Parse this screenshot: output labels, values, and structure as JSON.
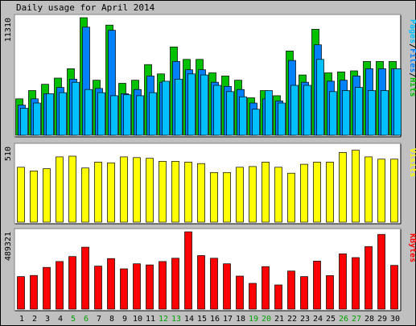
{
  "chart_data": {
    "type": "bar",
    "title": "Daily usage for April 2014",
    "categories": [
      "1",
      "2",
      "3",
      "4",
      "5",
      "6",
      "7",
      "8",
      "9",
      "10",
      "11",
      "12",
      "13",
      "14",
      "15",
      "16",
      "17",
      "18",
      "19",
      "20",
      "21",
      "22",
      "23",
      "24",
      "25",
      "26",
      "27",
      "28",
      "29",
      "30"
    ],
    "weekend_days": [
      "5",
      "6",
      "12",
      "13",
      "19",
      "20",
      "26",
      "27"
    ],
    "colors": {
      "hits": "#00c000",
      "files": "#0080ff",
      "pages": "#00c0ff",
      "visits": "#ffff00",
      "kbytes": "#ff0000",
      "weekday_label": "#000000",
      "weekend_label": "#00a000",
      "panel_bg": "#ffffff",
      "page_bg": "#c0c0c0"
    },
    "panels": [
      {
        "id": "hits-panel",
        "ymax_label": "11310",
        "ymax": 11310,
        "series_label": {
          "parts": [
            {
              "text": "Pages",
              "color": "#00c0ff"
            },
            {
              "text": "/",
              "color": "#000000"
            },
            {
              "text": "Files",
              "color": "#0080ff"
            },
            {
              "text": "/",
              "color": "#000000"
            },
            {
              "text": "Hits",
              "color": "#00c000"
            }
          ]
        },
        "series": [
          {
            "name": "Hits",
            "values": [
              3500,
              4300,
              4900,
              5500,
              6400,
              11310,
              5300,
              10600,
              5000,
              5300,
              6800,
              5900,
              8500,
              7300,
              7300,
              6000,
              5700,
              5300,
              3600,
              4300,
              3800,
              8100,
              5800,
              10200,
              6000,
              6100,
              6200,
              7100,
              7100,
              7100
            ]
          },
          {
            "name": "Files",
            "values": [
              2900,
              3500,
              4000,
              4600,
              5400,
              10400,
              4500,
              10100,
              4000,
              4400,
              5700,
              5100,
              7100,
              6300,
              6300,
              5100,
              4700,
              4400,
              3100,
              3500,
              3300,
              7200,
              5100,
              8700,
              5200,
              5300,
              5700,
              6400,
              6400,
              6400
            ]
          },
          {
            "name": "Pages",
            "values": [
              2600,
              3100,
              4000,
              4100,
              5100,
              4400,
              4100,
              3800,
              3900,
              3800,
              4100,
              5200,
              5400,
              5900,
              5800,
              4800,
              4200,
              3700,
              2500,
              4300,
              3100,
              4800,
              4800,
              7300,
              4200,
              4300,
              4600,
              4300,
              4300,
              6400
            ]
          }
        ]
      },
      {
        "id": "visits-panel",
        "ymax_label": "510",
        "ymax": 510,
        "series_label": {
          "parts": [
            {
              "text": "Visits",
              "color": "#ffff00"
            }
          ]
        },
        "series": [
          {
            "name": "Visits",
            "values": [
              370,
              345,
              360,
              440,
              445,
              365,
              405,
              400,
              440,
              435,
              430,
              410,
              410,
              405,
              395,
              335,
              335,
              370,
              375,
              405,
              370,
              330,
              390,
              405,
              405,
              470,
              485,
              440,
              425,
              425
            ]
          }
        ]
      },
      {
        "id": "kbytes-panel",
        "ymax_label": "489321",
        "ymax": 489321,
        "series_label": {
          "parts": [
            {
              "text": "KBytes",
              "color": "#ff0000"
            }
          ]
        },
        "series": [
          {
            "name": "KBytes",
            "values": [
              206000,
              213000,
              264000,
              301000,
              333000,
              392000,
              272000,
              320000,
              255000,
              287000,
              280000,
              301000,
              322000,
              489321,
              339000,
              322000,
              287000,
              209000,
              163000,
              269000,
              153000,
              241000,
              206000,
              304000,
              212000,
              350000,
              326000,
              396000,
              473000,
              277000
            ]
          }
        ]
      }
    ]
  }
}
